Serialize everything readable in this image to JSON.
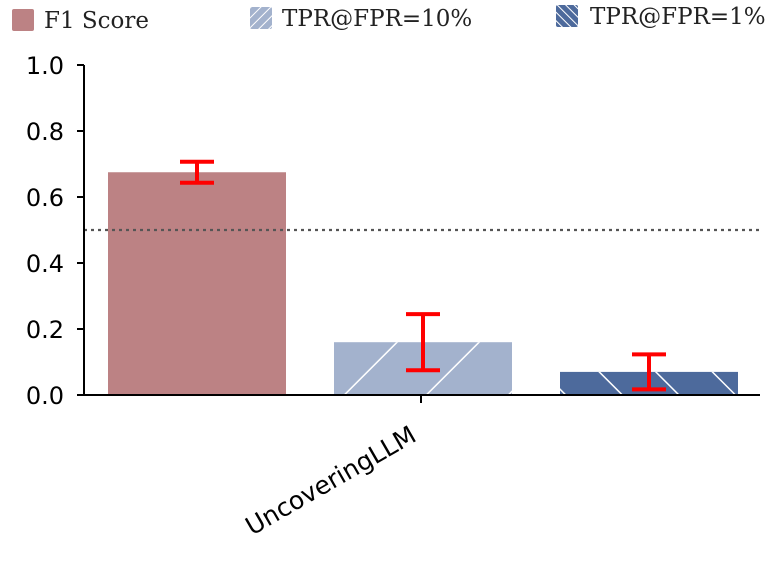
{
  "chart_data": {
    "type": "bar",
    "categories": [
      "UncoveringLLM"
    ],
    "series": [
      {
        "name": "F1 Score",
        "values": [
          0.675
        ],
        "error": [
          0.032
        ],
        "color": "#bc8284",
        "pattern": "solid"
      },
      {
        "name": "TPR@FPR=10%",
        "values": [
          0.16
        ],
        "error": [
          0.085
        ],
        "color": "#a3b2cd",
        "pattern": "hatch-light"
      },
      {
        "name": "TPR@FPR=1%",
        "values": [
          0.07
        ],
        "error": [
          0.053
        ],
        "color": "#4d6a9c",
        "pattern": "hatch-dense"
      }
    ],
    "reference_line": 0.5,
    "error_color": "#ff0000",
    "yticks": [
      "0.0",
      "0.2",
      "0.4",
      "0.6",
      "0.8",
      "1.0"
    ],
    "ylim": [
      0,
      1.0
    ],
    "legend_position": "top"
  }
}
